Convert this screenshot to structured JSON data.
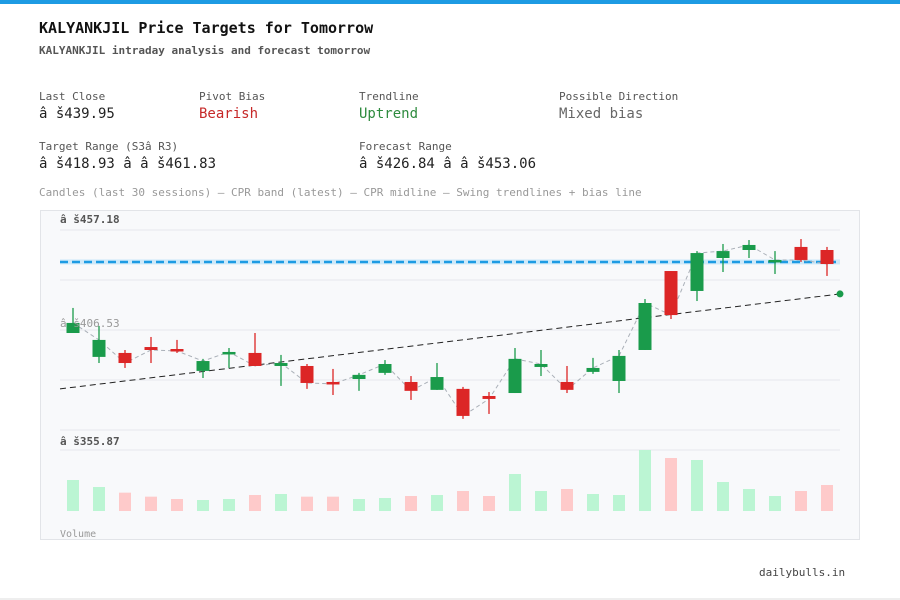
{
  "header": {
    "title": "KALYANKJIL Price Targets for Tomorrow",
    "subtitle": "KALYANKJIL intraday analysis and forecast tomorrow"
  },
  "stats": {
    "last_close": {
      "label": "Last Close",
      "value": "â š439.95"
    },
    "pivot_bias": {
      "label": "Pivot Bias",
      "value": "Bearish"
    },
    "trendline": {
      "label": "Trendline",
      "value": "Uptrend"
    },
    "direction": {
      "label": "Possible Direction",
      "value": "Mixed bias"
    },
    "target_range": {
      "label": "Target Range (S3â  R3)",
      "value": "â š418.93 â   â š461.83"
    },
    "forecast_range": {
      "label": "Forecast Range",
      "value": "â š426.84 â   â š453.06"
    }
  },
  "legend": "Candles (last 30 sessions) – CPR band (latest) – CPR midline – Swing trendlines + bias line",
  "footer": "dailybulls.in",
  "colors": {
    "up": "#1a9b4b",
    "down": "#dc2626",
    "up_vol": "#bbf5d3",
    "down_vol": "#fecaca",
    "cpr": "#1d9be3"
  },
  "chart_data": {
    "type": "candlestick",
    "price_labels": {
      "top": "â š457.18",
      "mid": "â š406.53",
      "bottom": "â š355.87"
    },
    "volume_label": "Volume",
    "ylim": [
      355.87,
      457.18
    ],
    "cpr_mid": 441.0,
    "trendline": {
      "start": 376.7,
      "end": 424.8
    },
    "candles": [
      [
        405.0,
        417.7,
        405.0,
        410.1
      ],
      [
        392.9,
        408.6,
        389.8,
        401.5
      ],
      [
        394.9,
        396.4,
        387.3,
        389.8
      ],
      [
        397.9,
        403.0,
        389.8,
        396.4
      ],
      [
        396.9,
        401.5,
        394.9,
        395.9
      ],
      [
        385.8,
        391.9,
        382.2,
        390.8
      ],
      [
        394.4,
        397.4,
        387.3,
        395.4
      ],
      [
        394.9,
        405.0,
        388.3,
        388.3
      ],
      [
        388.3,
        393.9,
        378.2,
        389.8
      ],
      [
        388.3,
        389.3,
        376.7,
        379.7
      ],
      [
        380.2,
        386.8,
        373.6,
        379.2
      ],
      [
        381.7,
        384.8,
        375.7,
        383.8
      ],
      [
        384.8,
        391.3,
        383.8,
        389.3
      ],
      [
        380.2,
        383.2,
        371.1,
        375.7
      ],
      [
        376.2,
        389.8,
        376.2,
        382.7
      ],
      [
        376.7,
        377.7,
        361.5,
        363.0
      ],
      [
        373.1,
        375.1,
        364.0,
        371.6
      ],
      [
        374.6,
        397.4,
        374.6,
        391.9
      ],
      [
        387.8,
        396.4,
        383.2,
        389.3
      ],
      [
        380.2,
        388.3,
        374.6,
        376.2
      ],
      [
        385.3,
        392.4,
        384.3,
        387.3
      ],
      [
        380.7,
        396.4,
        374.6,
        393.4
      ],
      [
        396.4,
        422.2,
        396.4,
        420.2
      ],
      [
        436.4,
        436.4,
        412.1,
        414.1
      ],
      [
        426.3,
        446.5,
        421.2,
        445.5
      ],
      [
        443.0,
        450.1,
        435.9,
        446.5
      ],
      [
        447.05,
        452.1,
        443.0,
        449.6
      ],
      [
        441.0,
        446.5,
        434.9,
        442.0
      ],
      [
        448.6,
        452.6,
        441.0,
        442.0
      ],
      [
        447.05,
        448.6,
        433.9,
        439.95
      ]
    ],
    "volume_relative": [
      93,
      72,
      55,
      43,
      36,
      33,
      36,
      48,
      51,
      43,
      43,
      36,
      39,
      45,
      48,
      60,
      45,
      111,
      60,
      66,
      51,
      48,
      183,
      159,
      153,
      87,
      66,
      45,
      60,
      78
    ]
  }
}
